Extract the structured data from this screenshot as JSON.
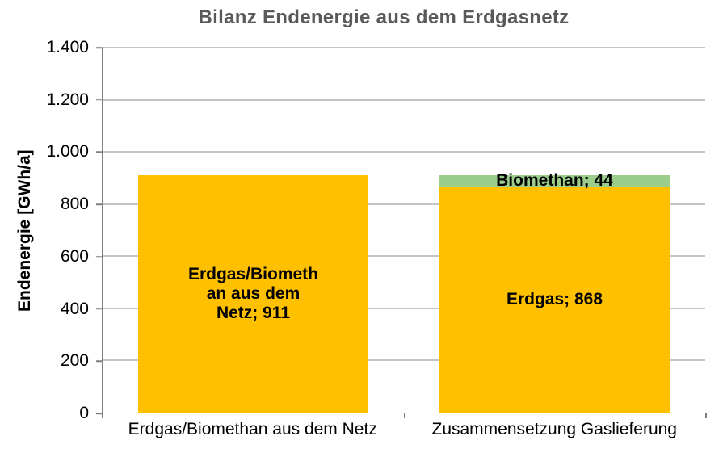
{
  "chart_data": {
    "type": "bar",
    "stacked": true,
    "title": "Bilanz Endenergie aus dem Erdgasnetz",
    "xlabel": "",
    "ylabel": "Endenergie [GWh/a]",
    "ylim": [
      0,
      1400
    ],
    "grid": true,
    "legend_position": "none",
    "yticks": [
      {
        "value": 0,
        "label": "0"
      },
      {
        "value": 200,
        "label": "200"
      },
      {
        "value": 400,
        "label": "400"
      },
      {
        "value": 600,
        "label": "600"
      },
      {
        "value": 800,
        "label": "800"
      },
      {
        "value": 1000,
        "label": "1.000"
      },
      {
        "value": 1200,
        "label": "1.200"
      },
      {
        "value": 1400,
        "label": "1.400"
      }
    ],
    "categories": [
      "Erdgas/Biomethan aus dem Netz",
      "Zusammensetzung Gaslieferung"
    ],
    "bars": [
      {
        "category": "Erdgas/Biomethan aus dem Netz",
        "segments": [
          {
            "name": "Erdgas/Biomethan aus dem Netz",
            "value": 911,
            "color": "#FFC000",
            "label": "Erdgas/Biomethan aus dem Netz; 911",
            "label_lines": [
              "Erdgas/Biometh",
              "an aus dem",
              "Netz; 911"
            ]
          }
        ]
      },
      {
        "category": "Zusammensetzung Gaslieferung",
        "segments": [
          {
            "name": "Erdgas",
            "value": 868,
            "color": "#FFC000",
            "label": "Erdgas; 868",
            "label_lines": [
              "Erdgas; 868"
            ]
          },
          {
            "name": "Biomethan",
            "value": 44,
            "color": "#9CCE8B",
            "label": "Biomethan; 44",
            "label_lines": [
              "Biomethan; 44"
            ]
          }
        ]
      }
    ],
    "colors": {
      "bar_yellow": "#FFC000",
      "bar_green": "#9CCE8B",
      "title_text": "#595959",
      "gridline": "#8A8A8A",
      "axis": "#7F7F7F",
      "label_text": "#000000"
    }
  }
}
